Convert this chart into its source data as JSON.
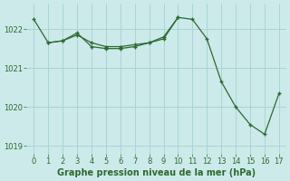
{
  "line1_x": [
    0,
    1,
    2,
    3,
    4,
    5,
    6,
    7,
    8,
    9,
    10,
    11,
    12,
    13,
    14,
    15,
    16,
    17
  ],
  "line1_y": [
    1022.25,
    1021.65,
    1021.7,
    1021.85,
    1021.65,
    1021.55,
    1021.55,
    1021.6,
    1021.65,
    1021.75,
    1022.3,
    1022.25,
    1021.75,
    1020.65,
    1020.0,
    1019.55,
    1019.3,
    1020.35
  ],
  "line2_x": [
    1,
    2,
    3,
    4,
    5,
    6,
    7,
    8,
    9,
    10
  ],
  "line2_y": [
    1021.65,
    1021.7,
    1021.9,
    1021.55,
    1021.5,
    1021.5,
    1021.55,
    1021.65,
    1021.8,
    1022.3
  ],
  "line_color": "#2d6a2d",
  "marker": "+",
  "markersize": 3,
  "linewidth": 0.9,
  "bg_color": "#cceaea",
  "grid_color": "#aad4d4",
  "xlabel": "Graphe pression niveau de la mer (hPa)",
  "xlabel_color": "#2d6a2d",
  "xlabel_fontsize": 7,
  "tick_fontsize": 6,
  "ylim": [
    1018.8,
    1022.65
  ],
  "xlim": [
    -0.5,
    17.5
  ],
  "yticks": [
    1019,
    1020,
    1021,
    1022
  ],
  "xticks": [
    0,
    1,
    2,
    3,
    4,
    5,
    6,
    7,
    8,
    9,
    10,
    11,
    12,
    13,
    14,
    15,
    16,
    17
  ]
}
